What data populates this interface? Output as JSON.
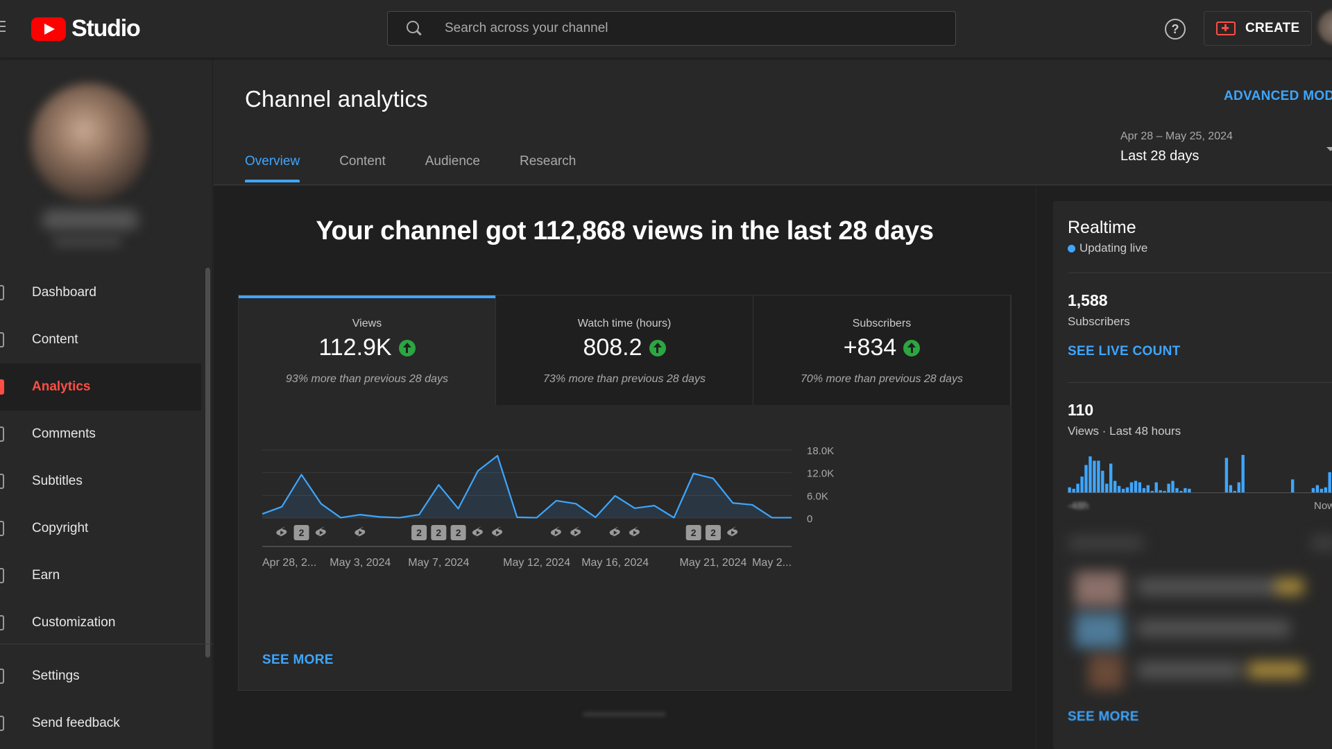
{
  "app": {
    "logo_text": "Studio"
  },
  "search": {
    "placeholder": "Search across your channel"
  },
  "header": {
    "create_label": "CREATE",
    "help_glyph": "?"
  },
  "sidebar": {
    "items": [
      {
        "label": "Dashboard",
        "icon": "dashboard-icon"
      },
      {
        "label": "Content",
        "icon": "content-icon"
      },
      {
        "label": "Analytics",
        "icon": "analytics-icon",
        "active": true
      },
      {
        "label": "Comments",
        "icon": "comments-icon"
      },
      {
        "label": "Subtitles",
        "icon": "subtitles-icon"
      },
      {
        "label": "Copyright",
        "icon": "copyright-icon"
      },
      {
        "label": "Earn",
        "icon": "earn-icon"
      },
      {
        "label": "Customization",
        "icon": "customization-icon"
      }
    ],
    "bottom_items": [
      {
        "label": "Settings",
        "icon": "settings-icon"
      },
      {
        "label": "Send feedback",
        "icon": "feedback-icon"
      }
    ]
  },
  "page": {
    "title": "Channel analytics",
    "advanced_mode": "ADVANCED MODE",
    "tabs": [
      "Overview",
      "Content",
      "Audience",
      "Research"
    ],
    "active_tab": "Overview",
    "date_range": "Apr 28 – May 25, 2024",
    "date_preset": "Last 28 days"
  },
  "overview": {
    "headline": "Your channel got 112,868 views in the last 28 days",
    "metrics": [
      {
        "label": "Views",
        "value": "112.9K",
        "change": "93% more than previous 28 days"
      },
      {
        "label": "Watch time (hours)",
        "value": "808.2",
        "change": "73% more than previous 28 days"
      },
      {
        "label": "Subscribers",
        "value": "+834",
        "change": "70% more than previous 28 days"
      }
    ],
    "see_more": "SEE MORE"
  },
  "chart_data": {
    "type": "area",
    "series": [
      {
        "values": [
          1100,
          3000,
          11500,
          3800,
          100,
          900,
          300,
          100,
          900,
          8800,
          2500,
          12500,
          16500,
          200,
          100,
          4600,
          3800,
          200,
          5900,
          2600,
          3300,
          100,
          11800,
          10500,
          4000,
          3500,
          100,
          100
        ]
      }
    ],
    "x_tick_labels": [
      "Apr 28, 2...",
      "May 3, 2024",
      "May 7, 2024",
      "May 12, 2024",
      "May 16, 2024",
      "May 21, 2024",
      "May 2..."
    ],
    "y_tick_labels": [
      "18.0K",
      "12.0K",
      "6.0K",
      "0"
    ],
    "ylim": [
      0,
      18000
    ],
    "color": "#3ea6ff",
    "markers": [
      {
        "kind": "shorts-icon"
      },
      {
        "kind": "video-count",
        "label": "2"
      },
      {
        "kind": "shorts-icon"
      },
      {
        "kind": "shorts-icon"
      },
      {
        "kind": "video-count",
        "label": "2"
      },
      {
        "kind": "video-count",
        "label": "2"
      },
      {
        "kind": "video-count",
        "label": "2"
      },
      {
        "kind": "shorts-icon"
      },
      {
        "kind": "shorts-icon"
      },
      {
        "kind": "shorts-icon"
      },
      {
        "kind": "shorts-icon"
      },
      {
        "kind": "shorts-icon"
      },
      {
        "kind": "shorts-icon"
      },
      {
        "kind": "video-count",
        "label": "2"
      },
      {
        "kind": "video-count",
        "label": "2"
      },
      {
        "kind": "shorts-icon"
      }
    ]
  },
  "realtime": {
    "title": "Realtime",
    "status": "Updating live",
    "subscribers_value": "1,588",
    "subscribers_label": "Subscribers",
    "see_live_count": "SEE LIVE COUNT",
    "views_value": "110",
    "views_label": "Views · Last 48 hours",
    "axis_start": "-48h",
    "axis_end": "Now",
    "see_more": "SEE MORE",
    "bars": [
      7,
      5,
      12,
      22,
      38,
      50,
      44,
      44,
      30,
      12,
      40,
      16,
      9,
      5,
      7,
      14,
      16,
      14,
      6,
      10,
      2,
      14,
      3,
      2,
      12,
      16,
      6,
      2,
      6,
      5,
      0,
      0,
      0,
      0,
      0,
      0,
      0,
      0,
      48,
      10,
      2,
      14,
      52,
      0,
      0,
      0,
      0,
      0,
      0,
      0,
      0,
      0,
      0,
      0,
      18,
      0,
      0,
      0,
      0,
      6,
      10,
      5,
      7,
      28
    ]
  }
}
